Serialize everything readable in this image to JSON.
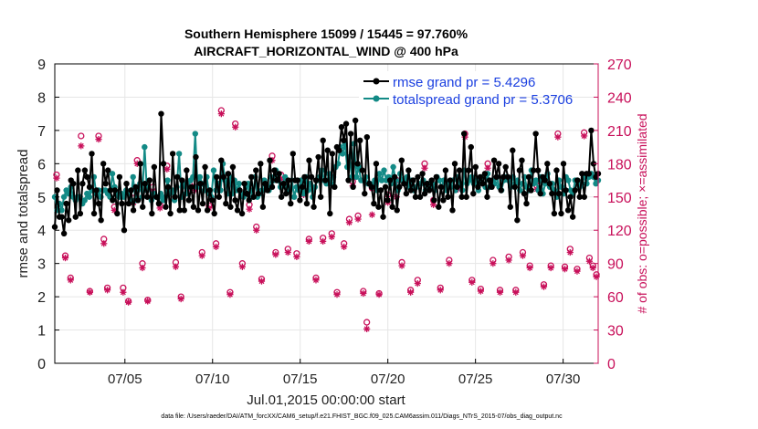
{
  "chart_data": {
    "type": "line",
    "title": "Southern Hemisphere 15099 / 15445 = 97.760%",
    "subtitle": "AIRCRAFT_HORIZONTAL_WIND @ 400 hPa",
    "xlabel": "Jul.01,2015 00:00:00 start",
    "ylabel_left": "rmse and totalspread",
    "ylabel_right": "# of obs: o=possible; ×=assimilated",
    "x_range_days": [
      1,
      32
    ],
    "ylim_left": [
      0,
      9
    ],
    "ylim_right": [
      0,
      270
    ],
    "yticks_left": [
      "0",
      "1",
      "2",
      "3",
      "4",
      "5",
      "6",
      "7",
      "8",
      "9"
    ],
    "yticks_right": [
      "0",
      "30",
      "60",
      "90",
      "120",
      "150",
      "180",
      "210",
      "240",
      "270"
    ],
    "xticks": [
      {
        "day": 5,
        "label": "07/05"
      },
      {
        "day": 10,
        "label": "07/10"
      },
      {
        "day": 15,
        "label": "07/15"
      },
      {
        "day": 20,
        "label": "07/20"
      },
      {
        "day": 25,
        "label": "07/25"
      },
      {
        "day": 30,
        "label": "07/30"
      }
    ],
    "grid": true,
    "legend_position": "top-right",
    "footer": "data file: /Users/raeder/DAI/ATM_forcXX/CAM6_setup/f.e21.FHIST_BGC.f09_025.CAM6assim.011/Diags_NTrS_2015-07/obs_diag_output.nc",
    "series": [
      {
        "name": "rmse grand pr = 5.4296",
        "color": "#000000",
        "marker": "circle",
        "values": [
          4.1,
          5.2,
          4.4,
          4.4,
          3.9,
          4.8,
          4.3,
          5.5,
          5.4,
          4.4,
          5.8,
          4.5,
          5.4,
          5.8,
          5.6,
          5.3,
          6.3,
          4.5,
          5.2,
          4.8,
          4.3,
          6.0,
          5.4,
          5.8,
          5.2,
          4.9,
          5.2,
          4.5,
          5.6,
          4.8,
          4.0,
          5.4,
          4.8,
          5.2,
          4.6,
          5.3,
          4.9,
          6.0,
          4.7,
          5.4,
          5.0,
          5.5,
          4.5,
          5.9,
          5.0,
          4.8,
          7.5,
          6.0,
          4.7,
          5.3,
          4.5,
          6.3,
          5.0,
          5.6,
          4.6,
          5.5,
          4.6,
          5.8,
          4.9,
          5.3,
          4.7,
          6.2,
          4.6,
          5.4,
          4.8,
          5.9,
          4.6,
          5.2,
          4.9,
          4.5,
          5.6,
          5.0,
          6.1,
          5.6,
          4.8,
          5.7,
          4.7,
          5.9,
          4.9,
          4.6,
          5.2,
          4.5,
          5.4,
          5.1,
          4.9,
          5.6,
          5.0,
          5.8,
          5.1,
          6.0,
          4.7,
          5.4,
          5.2,
          6.1,
          5.3,
          5.8,
          5.5,
          5.7,
          5.0,
          5.4,
          5.1,
          5.5,
          4.8,
          6.3,
          5.5,
          5.5,
          4.9,
          5.3,
          5.6,
          4.8,
          6.1,
          5.6,
          4.7,
          5.5,
          6.2,
          5.0,
          6.7,
          5.5,
          6.4,
          4.5,
          6.3,
          5.3,
          6.5,
          6.4,
          7.1,
          6.7,
          7.2,
          5.5,
          6.9,
          5.3,
          7.3,
          6.0,
          6.7,
          5.8,
          5.1,
          6.8,
          5.4,
          5.3,
          4.8,
          6.0,
          4.7,
          5.2,
          4.4,
          5.3,
          4.9,
          5.5,
          4.7,
          5.6,
          4.6,
          5.3,
          6.1,
          5.4,
          5.1,
          5.8,
          5.2,
          5.5,
          5.0,
          5.6,
          5.0,
          5.7,
          5.1,
          5.4,
          5.2,
          5.5,
          4.9,
          5.6,
          4.7,
          5.3,
          4.9,
          5.8,
          5.0,
          5.5,
          4.6,
          6.0,
          5.3,
          5.8,
          5.0,
          6.9,
          5.0,
          5.8,
          6.5,
          5.1,
          5.9,
          5.3,
          5.6,
          5.4,
          5.7,
          5.0,
          5.5,
          5.3,
          6.1,
          5.6,
          6.0,
          5.2,
          5.6,
          5.9,
          5.6,
          4.7,
          6.4,
          5.3,
          4.3,
          5.8,
          6.1,
          5.1,
          4.8,
          5.6,
          5.2,
          5.8,
          6.9,
          5.8,
          5.1,
          5.6,
          5.5,
          6.0,
          5.4,
          5.1,
          4.5,
          5.8,
          5.1,
          4.5,
          6.0,
          5.2,
          4.6,
          5.0,
          4.4,
          5.2,
          5.5,
          5.0,
          5.7,
          5.0,
          5.7,
          5.7,
          7.0,
          6.0,
          5.6,
          5.7
        ]
      },
      {
        "name": "totalspread grand pr = 5.3706",
        "color": "#138a86",
        "marker": "circle",
        "values": [
          5.0,
          4.6,
          4.8,
          4.6,
          5.0,
          5.2,
          5.1,
          5.3,
          5.0,
          4.9,
          5.0,
          5.0,
          4.8,
          4.9,
          5.1,
          5.0,
          5.2,
          5.6,
          5.1,
          5.2,
          5.0,
          5.2,
          5.2,
          5.1,
          5.0,
          5.7,
          5.3,
          5.1,
          5.0,
          5.1,
          5.0,
          5.2,
          5.1,
          4.9,
          5.6,
          4.9,
          5.2,
          5.4,
          5.0,
          6.5,
          5.2,
          5.5,
          4.9,
          5.1,
          5.0,
          5.0,
          5.1,
          4.9,
          5.0,
          5.5,
          5.1,
          5.2,
          4.9,
          5.3,
          6.3,
          5.0,
          5.4,
          5.1,
          5.3,
          5.5,
          5.6,
          6.9,
          5.3,
          5.6,
          5.4,
          5.2,
          5.6,
          5.1,
          5.0,
          5.8,
          5.2,
          5.4,
          5.2,
          6.0,
          5.5,
          5.1,
          5.6,
          5.1,
          5.5,
          5.2,
          5.4,
          5.1,
          5.0,
          5.3,
          5.4,
          5.2,
          5.0,
          5.6,
          5.0,
          5.1,
          5.2,
          5.5,
          5.3,
          5.2,
          5.6,
          5.5,
          5.8,
          5.5,
          5.3,
          5.4,
          5.6,
          5.3,
          5.2,
          5.5,
          5.0,
          5.3,
          5.2,
          5.5,
          5.1,
          5.6,
          5.2,
          5.4,
          5.0,
          5.3,
          5.5,
          5.6,
          5.8,
          5.5,
          5.4,
          5.7,
          5.4,
          5.6,
          5.9,
          6.0,
          6.5,
          6.3,
          6.6,
          5.9,
          6.2,
          5.6,
          6.6,
          5.6,
          5.9,
          5.5,
          5.5,
          5.6,
          5.4,
          5.4,
          5.3,
          5.5,
          5.2,
          5.7,
          5.5,
          5.8,
          5.5,
          5.6,
          5.4,
          5.9,
          5.5,
          5.2,
          5.7,
          5.5,
          5.4,
          5.6,
          5.3,
          5.5,
          5.2,
          5.3,
          5.4,
          5.4,
          5.5,
          5.2,
          5.4,
          5.3,
          5.4,
          5.2,
          5.6,
          5.5,
          5.3,
          5.5,
          5.2,
          5.4,
          5.3,
          5.5,
          5.2,
          5.6,
          5.4,
          5.2,
          5.8,
          5.4,
          5.5,
          5.6,
          5.4,
          5.5,
          5.2,
          5.6,
          5.4,
          5.3,
          5.7,
          5.3,
          5.5,
          5.4,
          5.6,
          5.3,
          5.2,
          5.5,
          5.6,
          5.5,
          5.3,
          5.6,
          5.4,
          5.5,
          5.2,
          5.4,
          5.6,
          5.3,
          5.2,
          5.8,
          5.4,
          5.5,
          5.2,
          5.6,
          5.1,
          5.4,
          5.7,
          5.3,
          5.4,
          5.2,
          5.0,
          5.5,
          5.3,
          5.1,
          5.6,
          5.5,
          5.2,
          5.1,
          5.5,
          5.5,
          5.3,
          5.4,
          5.6,
          5.4,
          5.6,
          5.7,
          5.6,
          5.4,
          5.5
        ]
      }
    ],
    "obs_possible": {
      "name": "possible",
      "marker": "o",
      "color": "#c8105a",
      "points": [
        [
          1.1,
          170
        ],
        [
          1.6,
          97
        ],
        [
          1.9,
          77
        ],
        [
          2.5,
          205
        ],
        [
          3.0,
          65
        ],
        [
          3.5,
          205
        ],
        [
          3.8,
          112
        ],
        [
          4.0,
          68
        ],
        [
          4.4,
          141
        ],
        [
          4.9,
          68
        ],
        [
          5.2,
          56
        ],
        [
          5.5,
          149
        ],
        [
          5.7,
          183
        ],
        [
          6.0,
          90
        ],
        [
          6.3,
          57
        ],
        [
          6.6,
          159
        ],
        [
          7.0,
          143
        ],
        [
          7.4,
          178
        ],
        [
          7.9,
          91
        ],
        [
          8.2,
          60
        ],
        [
          8.7,
          161
        ],
        [
          9.0,
          159
        ],
        [
          9.4,
          100
        ],
        [
          9.8,
          142
        ],
        [
          10.2,
          108
        ],
        [
          10.5,
          228
        ],
        [
          11.0,
          64
        ],
        [
          11.3,
          216
        ],
        [
          11.7,
          90
        ],
        [
          12.1,
          143
        ],
        [
          12.5,
          123
        ],
        [
          12.8,
          76
        ],
        [
          13.4,
          187
        ],
        [
          13.6,
          100
        ],
        [
          13.9,
          170
        ],
        [
          14.3,
          103
        ],
        [
          14.8,
          99
        ],
        [
          15.2,
          155
        ],
        [
          15.5,
          112
        ],
        [
          15.9,
          77
        ],
        [
          16.3,
          113
        ],
        [
          16.8,
          117
        ],
        [
          17.1,
          64
        ],
        [
          17.5,
          108
        ],
        [
          17.8,
          130
        ],
        [
          18.0,
          164
        ],
        [
          18.3,
          133
        ],
        [
          18.6,
          65
        ],
        [
          18.8,
          37
        ],
        [
          19.1,
          158
        ],
        [
          19.5,
          63
        ],
        [
          20.0,
          152
        ],
        [
          20.5,
          165
        ],
        [
          20.8,
          91
        ],
        [
          21.3,
          66
        ],
        [
          21.7,
          75
        ],
        [
          22.1,
          180
        ],
        [
          22.6,
          147
        ],
        [
          23.0,
          68
        ],
        [
          23.5,
          93
        ],
        [
          24.0,
          160
        ],
        [
          24.4,
          207
        ],
        [
          24.8,
          75
        ],
        [
          25.3,
          67
        ],
        [
          25.7,
          180
        ],
        [
          26.0,
          93
        ],
        [
          26.4,
          66
        ],
        [
          26.9,
          96
        ],
        [
          27.3,
          66
        ],
        [
          27.7,
          100
        ],
        [
          28.1,
          88
        ],
        [
          28.5,
          160
        ],
        [
          28.9,
          71
        ],
        [
          29.3,
          88
        ],
        [
          29.7,
          207
        ],
        [
          30.1,
          87
        ],
        [
          30.4,
          103
        ],
        [
          30.8,
          85
        ],
        [
          31.2,
          208
        ],
        [
          31.5,
          95
        ],
        [
          31.7,
          88
        ],
        [
          31.9,
          80
        ]
      ]
    },
    "obs_assimilated": {
      "name": "assimilated",
      "marker": "asterisk",
      "color": "#c8105a",
      "points": [
        [
          1.1,
          167
        ],
        [
          1.6,
          95
        ],
        [
          1.9,
          75
        ],
        [
          2.5,
          196
        ],
        [
          3.0,
          64
        ],
        [
          3.5,
          202
        ],
        [
          3.8,
          108
        ],
        [
          4.0,
          66
        ],
        [
          4.4,
          138
        ],
        [
          4.9,
          64
        ],
        [
          5.2,
          55
        ],
        [
          5.5,
          145
        ],
        [
          5.7,
          180
        ],
        [
          6.0,
          86
        ],
        [
          6.3,
          56
        ],
        [
          6.6,
          155
        ],
        [
          7.0,
          140
        ],
        [
          7.4,
          175
        ],
        [
          7.9,
          87
        ],
        [
          8.2,
          58
        ],
        [
          8.7,
          158
        ],
        [
          9.0,
          156
        ],
        [
          9.4,
          97
        ],
        [
          9.8,
          140
        ],
        [
          10.2,
          105
        ],
        [
          10.5,
          225
        ],
        [
          11.0,
          62
        ],
        [
          11.3,
          213
        ],
        [
          11.7,
          87
        ],
        [
          12.1,
          139
        ],
        [
          12.5,
          120
        ],
        [
          12.8,
          74
        ],
        [
          13.4,
          183
        ],
        [
          13.6,
          98
        ],
        [
          13.9,
          166
        ],
        [
          14.3,
          100
        ],
        [
          14.8,
          96
        ],
        [
          15.2,
          152
        ],
        [
          15.5,
          110
        ],
        [
          15.9,
          75
        ],
        [
          16.3,
          110
        ],
        [
          16.8,
          114
        ],
        [
          17.1,
          62
        ],
        [
          17.5,
          105
        ],
        [
          17.8,
          127
        ],
        [
          18.0,
          160
        ],
        [
          18.3,
          130
        ],
        [
          18.6,
          63
        ],
        [
          18.8,
          31
        ],
        [
          19.1,
          134
        ],
        [
          19.5,
          62
        ],
        [
          20.0,
          145
        ],
        [
          20.5,
          150
        ],
        [
          20.8,
          88
        ],
        [
          21.3,
          64
        ],
        [
          21.7,
          72
        ],
        [
          22.1,
          176
        ],
        [
          22.6,
          143
        ],
        [
          23.0,
          66
        ],
        [
          23.5,
          90
        ],
        [
          24.0,
          157
        ],
        [
          24.4,
          204
        ],
        [
          24.8,
          73
        ],
        [
          25.3,
          65
        ],
        [
          25.7,
          176
        ],
        [
          26.0,
          90
        ],
        [
          26.4,
          64
        ],
        [
          26.9,
          93
        ],
        [
          27.3,
          64
        ],
        [
          27.7,
          97
        ],
        [
          28.1,
          86
        ],
        [
          28.5,
          157
        ],
        [
          28.9,
          69
        ],
        [
          29.3,
          86
        ],
        [
          29.7,
          204
        ],
        [
          30.1,
          85
        ],
        [
          30.4,
          100
        ],
        [
          30.8,
          83
        ],
        [
          31.2,
          205
        ],
        [
          31.5,
          92
        ],
        [
          31.7,
          86
        ],
        [
          31.9,
          78
        ]
      ]
    }
  }
}
